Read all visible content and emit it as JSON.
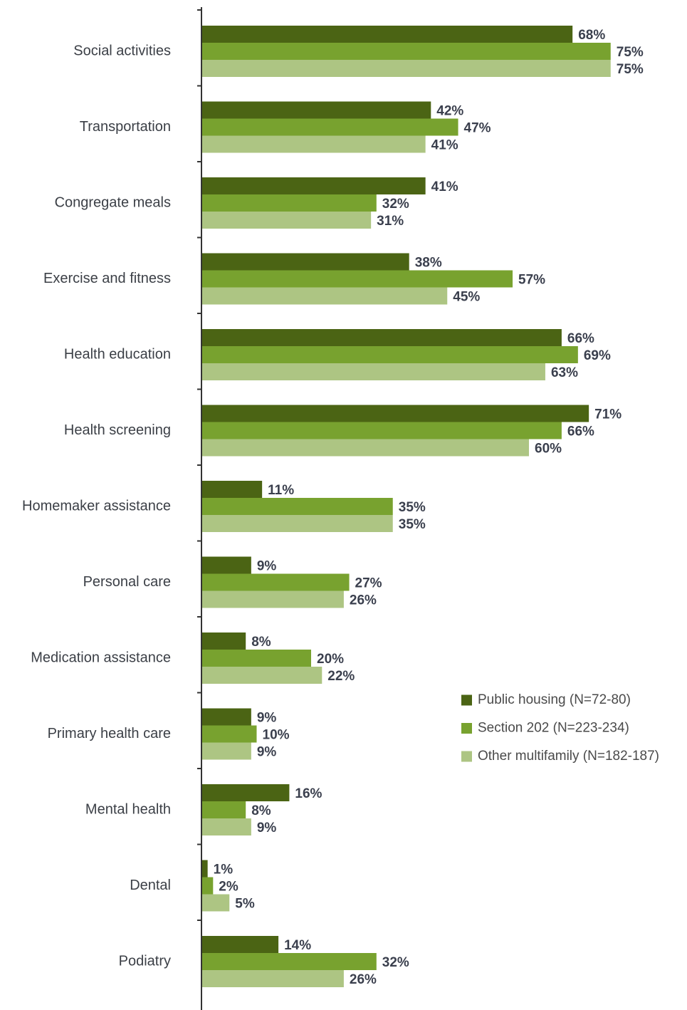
{
  "chart_data": {
    "type": "bar",
    "orientation": "horizontal",
    "categories": [
      "Social activities",
      "Transportation",
      "Congregate meals",
      "Exercise and fitness",
      "Health education",
      "Health screening",
      "Homemaker assistance",
      "Personal care",
      "Medication assistance",
      "Primary health care",
      "Mental health",
      "Dental",
      "Podiatry"
    ],
    "series": [
      {
        "name": "Public housing (N=72-80)",
        "color": "#4b6414",
        "values": [
          68,
          42,
          41,
          38,
          66,
          71,
          11,
          9,
          8,
          9,
          16,
          1,
          14
        ],
        "value_labels": [
          "68%",
          "42%",
          "41%",
          "38%",
          "66%",
          "71%",
          "11%",
          "9%",
          "8%",
          "9%",
          "16%",
          "1%",
          "14%"
        ]
      },
      {
        "name": "Section 202 (N=223-234)",
        "color": "#78a22f",
        "values": [
          75,
          47,
          32,
          57,
          69,
          66,
          35,
          27,
          20,
          10,
          8,
          2,
          32
        ],
        "value_labels": [
          "75%",
          "47%",
          "32%",
          "57%",
          "69%",
          "66%",
          "35%",
          "27%",
          "20%",
          "10%",
          "8%",
          "2%",
          "32%"
        ]
      },
      {
        "name": "Other multifamily (N=182-187)",
        "color": "#adc583",
        "values": [
          75,
          41,
          31,
          45,
          63,
          60,
          35,
          26,
          22,
          9,
          9,
          5,
          26
        ],
        "value_labels": [
          "75%",
          "41%",
          "31%",
          "45%",
          "63%",
          "60%",
          "35%",
          "26%",
          "22%",
          "9%",
          "9%",
          "5%",
          "26%"
        ]
      }
    ],
    "legend": "lower-right"
  }
}
